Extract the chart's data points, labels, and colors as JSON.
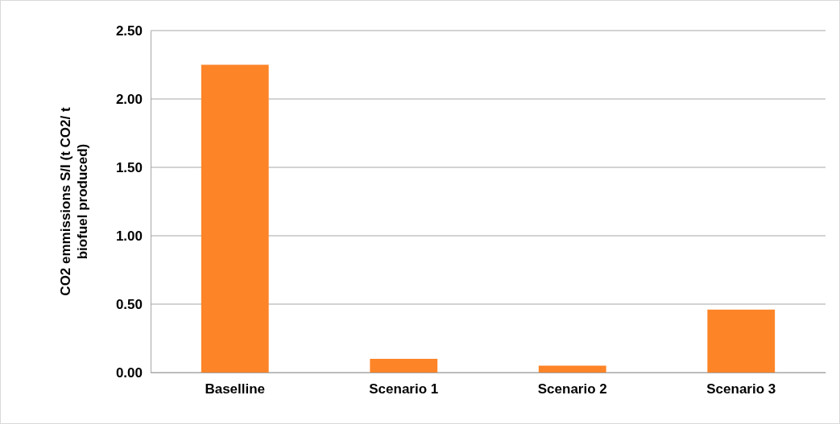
{
  "chart_data": {
    "type": "bar",
    "ylabel": "CO2 emmissions S/I (t CO2/ t biofuel produced)",
    "categories": [
      "Baselline",
      "Scenario 1",
      "Scenario 2",
      "Scenario 3"
    ],
    "values": [
      2.25,
      0.1,
      0.05,
      0.46
    ],
    "color": "#fd8427",
    "ylim": [
      0,
      2.5
    ],
    "yticks": [
      {
        "value": 0,
        "label": "0.00"
      },
      {
        "value": 0.5,
        "label": "0.50"
      },
      {
        "value": 1,
        "label": "1.00"
      },
      {
        "value": 1.5,
        "label": "1.50"
      },
      {
        "value": 2,
        "label": "2.00"
      },
      {
        "value": 2.5,
        "label": "2.50"
      }
    ],
    "grid": "y"
  }
}
